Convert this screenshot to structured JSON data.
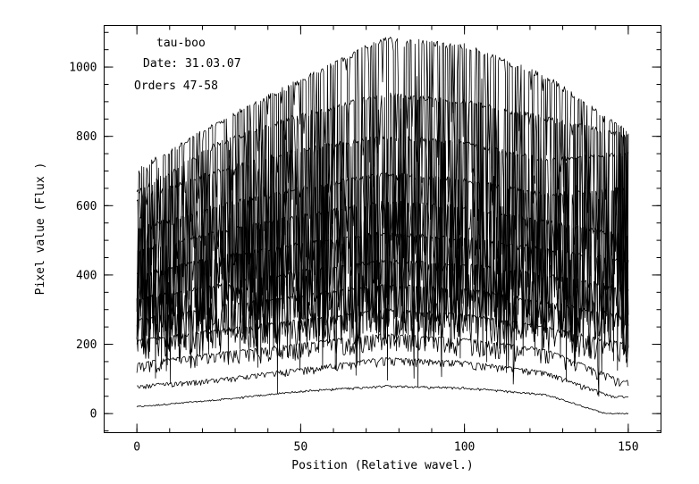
{
  "chart_data": {
    "type": "line",
    "title": "",
    "xlabel": "Position (Relative wavel.)",
    "ylabel": "Pixel value (Flux )",
    "xlim": [
      -10,
      160
    ],
    "ylim": [
      -55,
      1120
    ],
    "x_ticks": [
      0,
      50,
      100,
      150
    ],
    "y_ticks": [
      0,
      200,
      400,
      600,
      800,
      1000
    ],
    "x_minor_step": 10,
    "y_minor_step": 50,
    "grid": false,
    "legend": "none",
    "annotations": [
      "tau-boo",
      "Date: 31.03.07",
      "Orders 47-58"
    ],
    "series": [
      {
        "x": [
          0,
          25,
          50,
          75,
          100,
          125,
          143,
          150
        ],
        "values": [
          20,
          40,
          65,
          80,
          75,
          55,
          0,
          0
        ]
      },
      {
        "x": [
          0,
          25,
          50,
          75,
          100,
          125,
          145,
          150
        ],
        "values": [
          80,
          100,
          130,
          160,
          150,
          120,
          50,
          50
        ]
      },
      {
        "x": [
          0,
          25,
          50,
          75,
          100,
          125,
          148,
          150
        ],
        "values": [
          145,
          175,
          200,
          230,
          215,
          185,
          95,
          95
        ]
      },
      {
        "x": [
          0,
          25,
          50,
          75,
          100,
          125,
          150
        ],
        "values": [
          210,
          240,
          270,
          300,
          285,
          250,
          200
        ]
      },
      {
        "x": [
          0,
          25,
          50,
          75,
          100,
          125,
          150
        ],
        "values": [
          270,
          310,
          340,
          370,
          360,
          320,
          280
        ]
      },
      {
        "x": [
          0,
          25,
          50,
          75,
          100,
          125,
          150
        ],
        "values": [
          330,
          370,
          410,
          440,
          430,
          400,
          360
        ]
      },
      {
        "x": [
          0,
          25,
          50,
          75,
          100,
          125,
          150
        ],
        "values": [
          400,
          450,
          490,
          520,
          505,
          475,
          440
        ]
      },
      {
        "x": [
          0,
          25,
          50,
          75,
          100,
          125,
          150
        ],
        "values": [
          470,
          525,
          570,
          610,
          595,
          555,
          510
        ]
      },
      {
        "x": [
          0,
          25,
          50,
          75,
          100,
          125,
          150
        ],
        "values": [
          530,
          600,
          650,
          690,
          675,
          630,
          650
        ]
      },
      {
        "x": [
          0,
          25,
          50,
          75,
          100,
          125,
          150
        ],
        "values": [
          620,
          700,
          760,
          800,
          780,
          730,
          750
        ]
      },
      {
        "x": [
          0,
          25,
          50,
          75,
          100,
          125,
          150
        ],
        "values": [
          640,
          780,
          860,
          920,
          900,
          850,
          800
        ]
      },
      {
        "x": [
          0,
          25,
          50,
          75,
          100,
          125,
          150
        ],
        "values": [
          700,
          840,
          960,
          1080,
          1060,
          970,
          810
        ]
      }
    ]
  }
}
